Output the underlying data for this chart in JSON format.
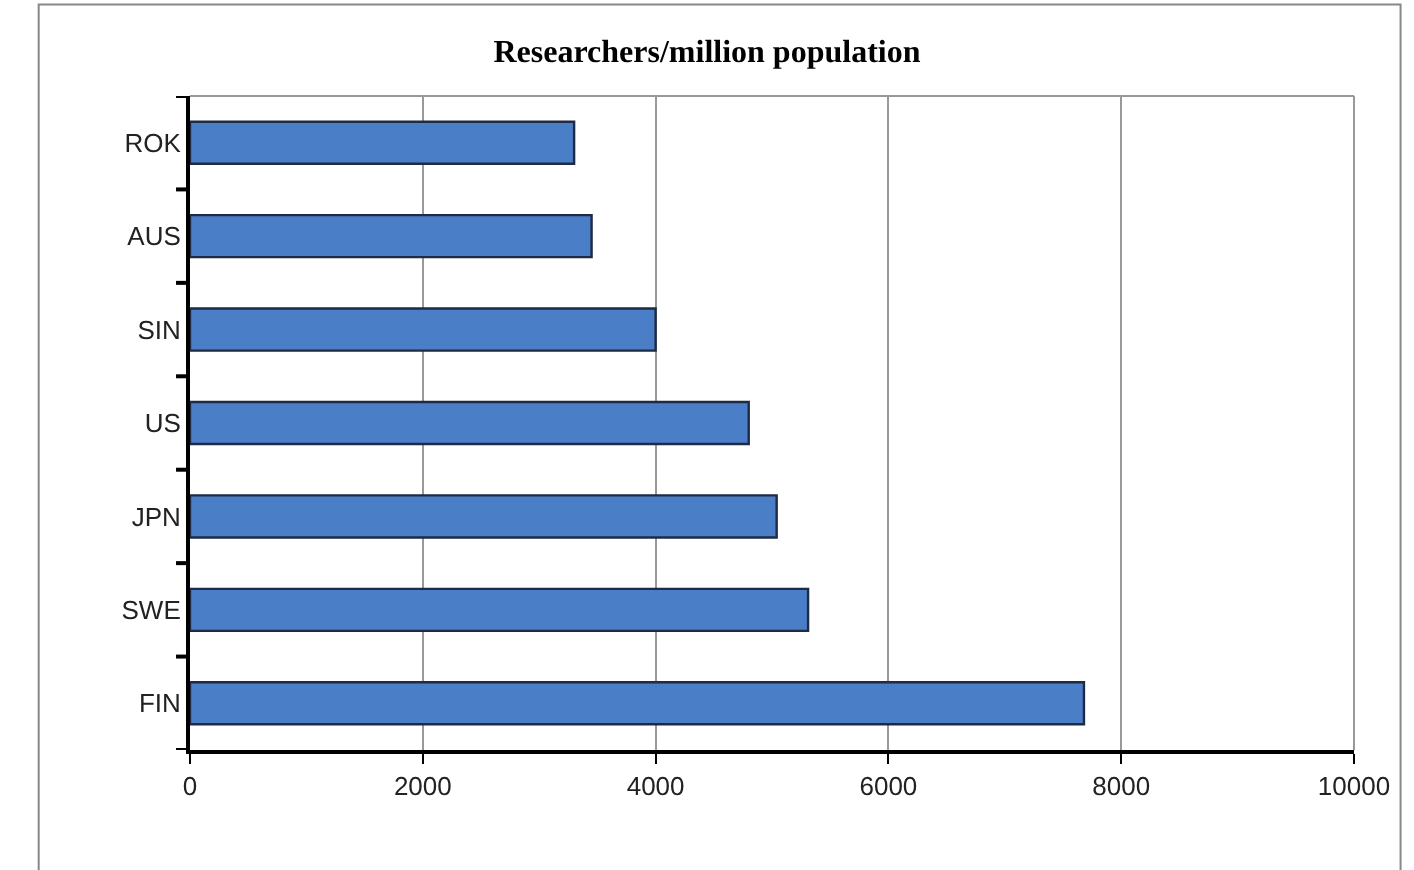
{
  "chart_data": {
    "type": "bar",
    "orientation": "horizontal",
    "title": "Researchers/million population",
    "categories": [
      "ROK",
      "AUS",
      "SIN",
      "US",
      "JPN",
      "SWE",
      "FIN"
    ],
    "values": [
      3300,
      3450,
      4000,
      4800,
      5040,
      5310,
      7680
    ],
    "color": "#4a7fc8",
    "xlim": [
      0,
      10000
    ],
    "xticks": [
      0,
      2000,
      4000,
      6000,
      8000,
      10000
    ],
    "grid": "x",
    "legend": false
  }
}
